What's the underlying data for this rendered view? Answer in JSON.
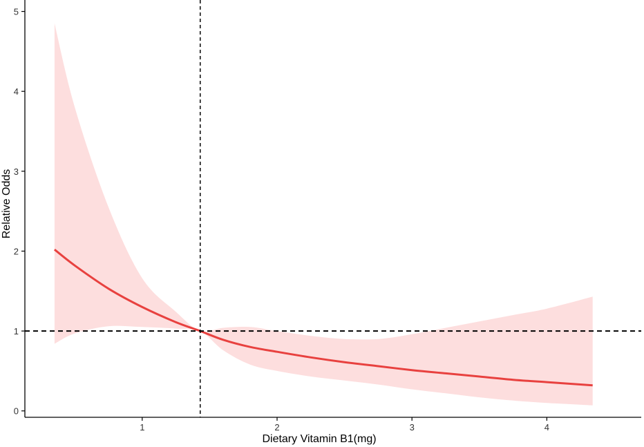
{
  "chart_data": {
    "type": "line",
    "title": "",
    "xlabel": "Dietary Vitamin B1(mg)",
    "ylabel": "Relative Odds",
    "xlim": [
      0.13,
      4.7
    ],
    "ylim": [
      -0.08,
      5.1
    ],
    "x_ticks": [
      1,
      2,
      3,
      4
    ],
    "y_ticks": [
      0,
      1,
      2,
      3,
      4,
      5
    ],
    "grid": false,
    "reference_lines": {
      "horizontal_y": 1,
      "vertical_x": 1.43
    },
    "series": [
      {
        "x": [
          0.35,
          0.5,
          0.75,
          1.0,
          1.25,
          1.43,
          1.6,
          1.8,
          2.0,
          2.25,
          2.5,
          2.75,
          3.0,
          3.25,
          3.5,
          3.75,
          4.0,
          4.34
        ],
        "y": [
          2.02,
          1.82,
          1.53,
          1.3,
          1.11,
          1.0,
          0.89,
          0.8,
          0.74,
          0.67,
          0.61,
          0.56,
          0.51,
          0.47,
          0.43,
          0.39,
          0.36,
          0.32
        ],
        "lower": [
          0.84,
          0.97,
          1.06,
          1.05,
          1.03,
          1.0,
          0.76,
          0.58,
          0.5,
          0.43,
          0.38,
          0.33,
          0.27,
          0.22,
          0.17,
          0.13,
          0.1,
          0.07
        ],
        "upper": [
          4.85,
          3.8,
          2.55,
          1.66,
          1.24,
          1.0,
          1.04,
          1.05,
          1.0,
          0.94,
          0.9,
          0.9,
          0.96,
          1.04,
          1.12,
          1.2,
          1.28,
          1.43
        ]
      }
    ],
    "colors": {
      "line": "#e8413f",
      "band": "#fddede",
      "reference": "#000000",
      "axis": "#000000"
    }
  }
}
